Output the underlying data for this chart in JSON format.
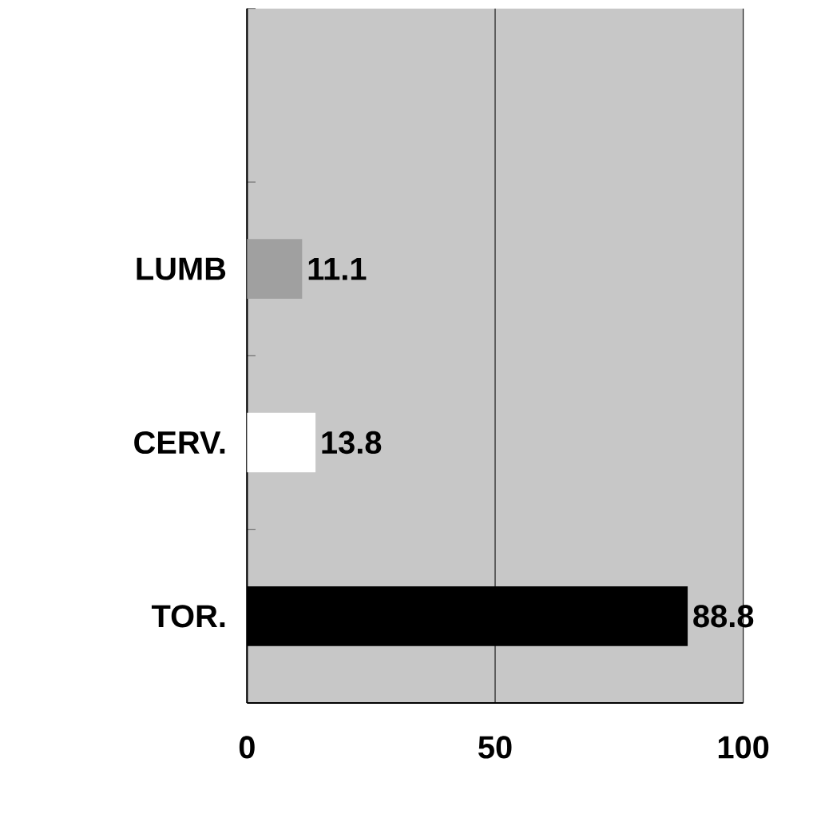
{
  "chart_data": {
    "type": "bar",
    "orientation": "horizontal",
    "categories": [
      null,
      "LUMB",
      "CERV.",
      "TOR."
    ],
    "values": [
      null,
      11.1,
      13.8,
      88.8
    ],
    "colors": [
      "#a0a0a0",
      "#a0a0a0",
      "#ffffff",
      "#000000"
    ],
    "xlim": [
      0,
      100
    ],
    "xticks": [
      0,
      50,
      100
    ],
    "grid": "x",
    "data_labels": true
  }
}
